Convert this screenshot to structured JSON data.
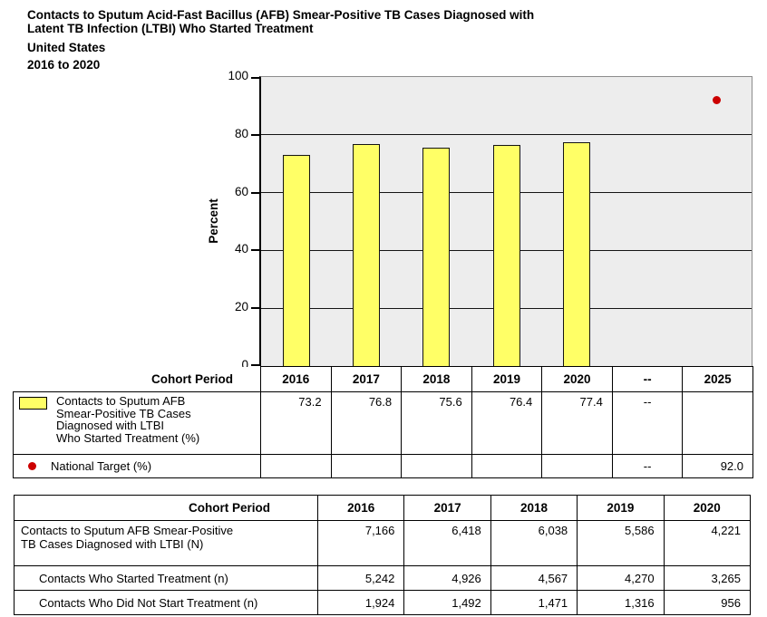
{
  "title": {
    "line1": "Contacts to Sputum Acid-Fast Bacillus (AFB) Smear-Positive TB Cases Diagnosed with",
    "line2": "Latent TB Infection (LTBI) Who Started Treatment",
    "place": "United States",
    "period": "2016 to 2020"
  },
  "colors": {
    "bar_fill": "#FFFF66",
    "bar_border": "#141414",
    "target_dot": "#CC0000",
    "plot_background": "#EDEDED"
  },
  "chart_data": {
    "type": "bar",
    "title": "Contacts to Sputum Acid-Fast Bacillus (AFB) Smear-Positive TB Cases Diagnosed with Latent TB Infection (LTBI) Who Started Treatment, United States, 2016 to 2020",
    "xlabel": "Cohort Period",
    "ylabel": "Percent",
    "ylim": [
      0,
      100
    ],
    "yticks": [
      0,
      20,
      40,
      60,
      80,
      100
    ],
    "grid": true,
    "legend_position": "left-table",
    "categories": [
      "2016",
      "2017",
      "2018",
      "2019",
      "2020",
      "--",
      "2025"
    ],
    "series": [
      {
        "name": "Contacts to Sputum AFB Smear-Positive TB Cases Diagnosed with LTBI Who Started Treatment (%)",
        "type": "bar",
        "values": [
          73.2,
          76.8,
          75.6,
          76.4,
          77.4,
          null,
          null
        ]
      },
      {
        "name": "National Target (%)",
        "type": "point",
        "values": [
          null,
          null,
          null,
          null,
          null,
          null,
          92.0
        ]
      }
    ]
  },
  "axis_table": {
    "header_label": "Cohort Period",
    "columns": [
      "2016",
      "2017",
      "2018",
      "2019",
      "2020",
      "--",
      "2025"
    ],
    "rows": [
      {
        "label_lines": [
          "Contacts to Sputum AFB",
          "Smear-Positive TB Cases",
          "Diagnosed with LTBI",
          "Who Started Treatment (%)"
        ],
        "values": [
          "73.2",
          "76.8",
          "75.6",
          "76.4",
          "77.4",
          "--",
          ""
        ]
      },
      {
        "label": "National Target (%)",
        "values": [
          "",
          "",
          "",
          "",
          "",
          "--",
          "92.0"
        ]
      }
    ]
  },
  "data_table": {
    "header_label": "Cohort Period",
    "columns": [
      "2016",
      "2017",
      "2018",
      "2019",
      "2020"
    ],
    "rows": [
      {
        "label_lines": [
          "Contacts to Sputum AFB Smear-Positive",
          "TB Cases Diagnosed with LTBI (N)"
        ],
        "values": [
          "7,166",
          "6,418",
          "6,038",
          "5,586",
          "4,221"
        ]
      },
      {
        "label": "Contacts Who Started Treatment (n)",
        "values": [
          "5,242",
          "4,926",
          "4,567",
          "4,270",
          "3,265"
        ]
      },
      {
        "label": "Contacts Who Did Not Start Treatment (n)",
        "values": [
          "1,924",
          "1,492",
          "1,471",
          "1,316",
          "956"
        ]
      }
    ]
  }
}
